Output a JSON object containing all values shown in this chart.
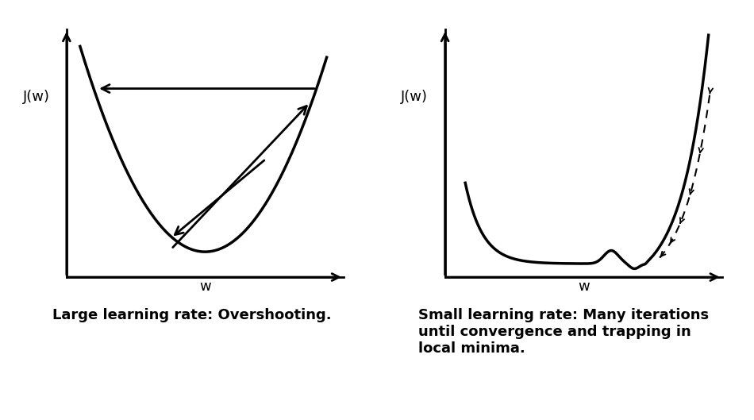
{
  "background_color": "#ffffff",
  "left_caption": "Large learning rate: Overshooting.",
  "right_caption": "Small learning rate: Many iterations\nuntil convergence and trapping in\nlocal minima.",
  "ylabel": "J(w)",
  "xlabel": "w",
  "label_fontsize": 13,
  "caption_fontsize": 13
}
